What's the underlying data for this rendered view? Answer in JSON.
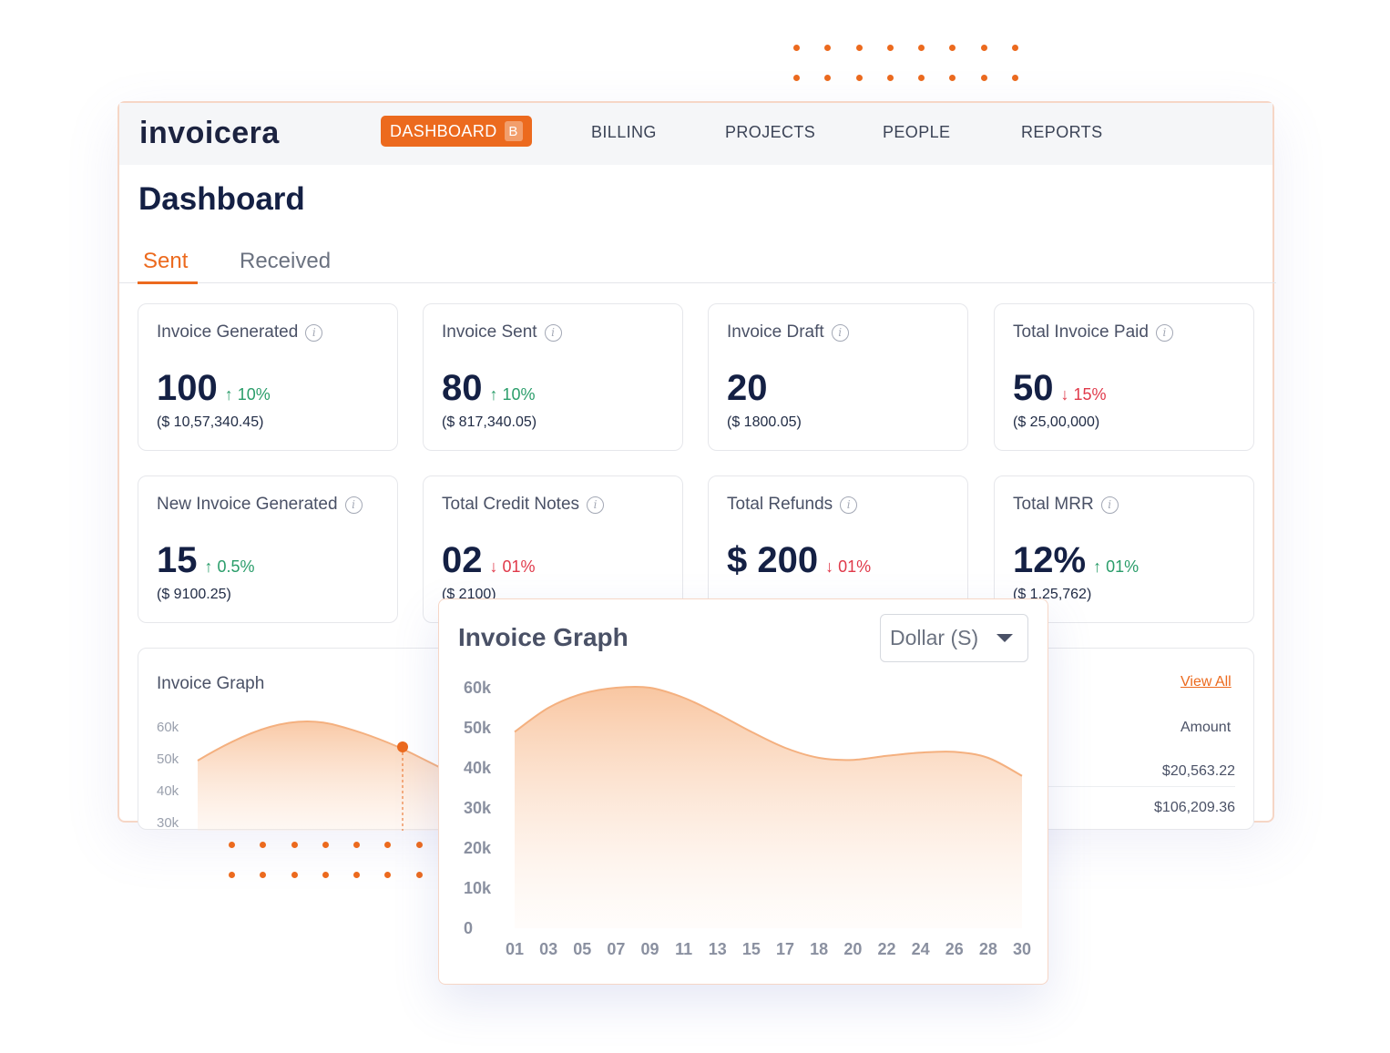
{
  "brand": {
    "logo_text": "invoicera",
    "accent": "#ec6a1e"
  },
  "nav": {
    "active": {
      "label": "DASHBOARD",
      "badge": "B"
    },
    "items": [
      "BILLING",
      "PROJECTS",
      "PEOPLE",
      "REPORTS"
    ]
  },
  "page": {
    "title": "Dashboard"
  },
  "tabs": {
    "sent": "Sent",
    "received": "Received"
  },
  "cards": [
    {
      "title": "Invoice Generated",
      "value": "100",
      "delta": "10%",
      "direction": "up",
      "sub": "($ 10,57,340.45)"
    },
    {
      "title": "Invoice Sent",
      "value": "80",
      "delta": "10%",
      "direction": "up",
      "sub": "($ 817,340.05)"
    },
    {
      "title": "Invoice Draft",
      "value": "20",
      "delta": "",
      "direction": "none",
      "sub": "($ 1800.05)"
    },
    {
      "title": "Total Invoice Paid",
      "value": "50",
      "delta": "15%",
      "direction": "down",
      "sub": "($ 25,00,000)"
    },
    {
      "title": "New Invoice Generated",
      "value": "15",
      "delta": "0.5%",
      "direction": "up",
      "sub": "($ 9100.25)"
    },
    {
      "title": "Total Credit Notes",
      "value": "02",
      "delta": "01%",
      "direction": "down",
      "sub": "($ 2100)"
    },
    {
      "title": "Total Refunds",
      "value": "$ 200",
      "delta": "01%",
      "direction": "down",
      "sub": ""
    },
    {
      "title": "Total MRR",
      "value": "12%",
      "delta": "01%",
      "direction": "up",
      "sub": "($ 1,25,762)"
    }
  ],
  "background_panel": {
    "title": "Invoice Graph",
    "y_labels": [
      "60k",
      "50k",
      "40k",
      "30k"
    ],
    "view_all": "View All",
    "amount_header": "Amount",
    "amounts": [
      "$20,563.22",
      "$106,209.36"
    ]
  },
  "popup": {
    "title": "Invoice Graph",
    "dropdown_value": "Dollar (S)"
  },
  "chart_data": {
    "type": "area",
    "title": "Invoice Graph",
    "xlabel": "",
    "ylabel": "",
    "categories": [
      "01",
      "03",
      "05",
      "07",
      "09",
      "11",
      "13",
      "15",
      "17",
      "18",
      "20",
      "22",
      "24",
      "26",
      "28",
      "30"
    ],
    "y_ticks": [
      "60k",
      "50k",
      "40k",
      "30k",
      "20k",
      "10k",
      "0"
    ],
    "ylim": [
      0,
      60000
    ],
    "series": [
      {
        "values": [
          49000,
          55000,
          58500,
          60000,
          60000,
          57500,
          53500,
          49000,
          45000,
          42500,
          42000,
          43000,
          43800,
          44000,
          42500,
          38000
        ]
      }
    ],
    "color": "#f4b07f",
    "grid": false
  }
}
